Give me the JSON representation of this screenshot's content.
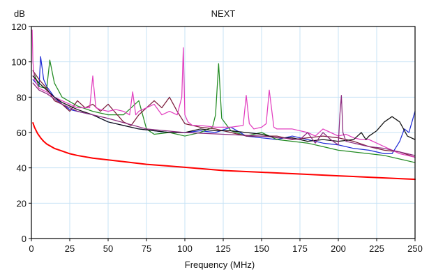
{
  "chart_data": {
    "type": "line",
    "title": "NEXT",
    "ylabel": "dB",
    "xlabel": "Frequency (MHz)",
    "xlim": [
      0,
      250
    ],
    "ylim": [
      0,
      120
    ],
    "xticks": [
      0,
      25,
      50,
      75,
      100,
      125,
      150,
      175,
      200,
      225,
      250
    ],
    "yticks": [
      0,
      20,
      40,
      60,
      80,
      100,
      120
    ],
    "grid": true,
    "legend": "none",
    "colors": {
      "plot_background": "#ffffff",
      "grid": "#c7e3f5",
      "axis": "#000000"
    },
    "series": [
      {
        "color": "#ff0000",
        "x": [
          1,
          2,
          4,
          6,
          8,
          10,
          15,
          20,
          25,
          30,
          40,
          50,
          60,
          75,
          90,
          100,
          125,
          150,
          175,
          200,
          225,
          250
        ],
        "y": [
          65.5,
          63,
          59.5,
          57,
          55,
          53.5,
          51,
          49.5,
          48,
          47,
          45.5,
          44.5,
          43.5,
          42,
          41,
          40.3,
          38.5,
          37.5,
          36.5,
          35.5,
          34.5,
          33.5
        ]
      },
      {
        "color": "#1f2bd6",
        "x": [
          1,
          3,
          5,
          6,
          8,
          10,
          15,
          20,
          25,
          30,
          40,
          50,
          60,
          70,
          80,
          90,
          100,
          110,
          120,
          130,
          140,
          150,
          160,
          170,
          180,
          190,
          200,
          210,
          220,
          225,
          230,
          235,
          240,
          243,
          246,
          250
        ],
        "y": [
          90,
          88,
          86,
          103,
          90,
          86,
          80,
          76,
          73,
          72,
          70,
          66,
          64,
          62,
          61,
          60,
          60,
          61,
          60,
          63,
          58,
          57,
          56,
          58,
          56,
          54,
          53,
          51,
          50,
          49,
          48,
          48,
          55,
          62,
          60,
          72
        ]
      },
      {
        "color": "#228b22",
        "x": [
          1,
          5,
          10,
          12,
          15,
          20,
          30,
          40,
          50,
          60,
          70,
          75,
          80,
          90,
          100,
          110,
          118,
          120,
          122,
          124,
          130,
          140,
          150,
          160,
          170,
          180,
          190,
          200,
          210,
          220,
          230,
          240,
          250
        ],
        "y": [
          95,
          86,
          85,
          101,
          88,
          80,
          75,
          72,
          70,
          70,
          78,
          62,
          59,
          60,
          58,
          60,
          63,
          70,
          99,
          68,
          61,
          58,
          60,
          56,
          55,
          54,
          52,
          50,
          49,
          48,
          47,
          45,
          43
        ]
      },
      {
        "color": "#7b1b3a",
        "x": [
          1,
          5,
          10,
          15,
          20,
          25,
          30,
          35,
          40,
          45,
          50,
          55,
          60,
          65,
          70,
          75,
          80,
          85,
          90,
          95,
          100,
          110,
          120,
          130,
          140,
          150,
          160,
          170,
          180,
          190,
          200,
          210,
          220,
          230,
          240,
          250
        ],
        "y": [
          95,
          90,
          85,
          78,
          76,
          72,
          78,
          74,
          76,
          72,
          76,
          71,
          66,
          64,
          70,
          74,
          78,
          74,
          80,
          72,
          65,
          63,
          62,
          60,
          58,
          58,
          58,
          56,
          57,
          58,
          57,
          55,
          52,
          50,
          49,
          46
        ]
      },
      {
        "color": "#e23fbf",
        "x": [
          0.5,
          1,
          2,
          5,
          10,
          15,
          20,
          25,
          30,
          38,
          40,
          42,
          45,
          50,
          55,
          60,
          64,
          66,
          68,
          70,
          75,
          80,
          85,
          90,
          95,
          98,
          99,
          100,
          102,
          105,
          110,
          120,
          130,
          138,
          140,
          142,
          145,
          150,
          153,
          155,
          158,
          160,
          170,
          180,
          185,
          190,
          195,
          200,
          205,
          210,
          215,
          220,
          225,
          230,
          235,
          240,
          245,
          250
        ],
        "y": [
          118,
          100,
          90,
          85,
          83,
          80,
          78,
          76,
          74,
          74,
          92,
          74,
          73,
          72,
          73,
          72,
          70,
          83,
          70,
          72,
          74,
          76,
          70,
          72,
          70,
          80,
          108,
          70,
          66,
          64,
          64,
          63,
          63,
          64,
          81,
          65,
          62,
          63,
          65,
          84,
          63,
          62,
          62,
          60,
          58,
          62,
          60,
          58,
          59,
          57,
          56,
          56,
          54,
          52,
          50,
          48,
          47,
          46
        ]
      },
      {
        "color": "#111111",
        "x": [
          1,
          5,
          10,
          15,
          20,
          25,
          30,
          40,
          50,
          60,
          70,
          80,
          90,
          100,
          110,
          120,
          130,
          140,
          150,
          160,
          170,
          180,
          190,
          200,
          210,
          215,
          218,
          220,
          225,
          230,
          235,
          240,
          245,
          250
        ],
        "y": [
          92,
          88,
          84,
          80,
          77,
          75,
          73,
          70,
          66,
          64,
          62,
          61,
          60,
          60,
          62,
          61,
          61,
          60,
          59,
          57,
          57,
          55,
          56,
          55,
          56,
          60,
          56,
          58,
          61,
          66,
          69,
          66,
          58,
          56
        ]
      },
      {
        "color": "#8b2a7e",
        "x": [
          1,
          5,
          10,
          20,
          30,
          50,
          75,
          100,
          125,
          150,
          175,
          180,
          185,
          190,
          195,
          200,
          201,
          202,
          203,
          205,
          210,
          220,
          230,
          240,
          250
        ],
        "y": [
          88,
          84,
          82,
          76,
          72,
          68,
          62,
          60,
          59,
          58,
          56,
          60,
          54,
          60,
          56,
          53,
          70,
          81,
          60,
          55,
          54,
          52,
          51,
          49,
          47
        ]
      }
    ]
  }
}
